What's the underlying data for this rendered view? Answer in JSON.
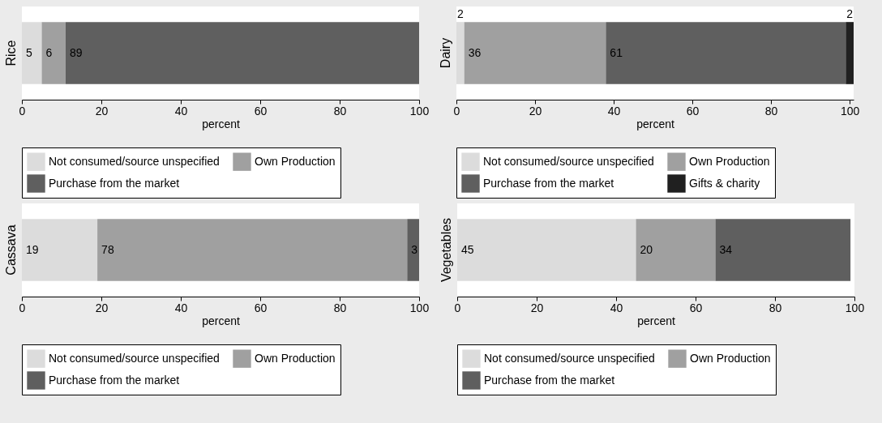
{
  "chart_data": [
    {
      "type": "bar",
      "orientation": "horizontal",
      "stacked": true,
      "categories": [
        "Rice"
      ],
      "xlabel": "percent",
      "xlim": [
        0,
        100
      ],
      "xticks": [
        0,
        20,
        40,
        60,
        80,
        100
      ],
      "data_labels": true,
      "legend": "bottom",
      "series": [
        {
          "name": "Not consumed/source unspecified",
          "color": "#dcdcdc",
          "values": [
            5
          ]
        },
        {
          "name": "Own Production",
          "color": "#a0a0a0",
          "values": [
            6
          ]
        },
        {
          "name": "Purchase from the market",
          "color": "#5f5f5f",
          "values": [
            89
          ]
        }
      ]
    },
    {
      "type": "bar",
      "orientation": "horizontal",
      "stacked": true,
      "categories": [
        "Dairy"
      ],
      "xlabel": "percent",
      "xlim": [
        0,
        101
      ],
      "xticks": [
        0,
        20,
        40,
        60,
        80,
        100
      ],
      "data_labels": true,
      "legend": "bottom",
      "series": [
        {
          "name": "Not consumed/source unspecified",
          "color": "#dcdcdc",
          "values": [
            2
          ]
        },
        {
          "name": "Own Production",
          "color": "#a0a0a0",
          "values": [
            36
          ]
        },
        {
          "name": "Purchase from the market",
          "color": "#5f5f5f",
          "values": [
            61
          ]
        },
        {
          "name": "Gifts & charity",
          "color": "#202020",
          "values": [
            2
          ]
        }
      ]
    },
    {
      "type": "bar",
      "orientation": "horizontal",
      "stacked": true,
      "categories": [
        "Cassava"
      ],
      "xlabel": "percent",
      "xlim": [
        0,
        100
      ],
      "xticks": [
        0,
        20,
        40,
        60,
        80,
        100
      ],
      "data_labels": true,
      "legend": "bottom",
      "series": [
        {
          "name": "Not consumed/source unspecified",
          "color": "#dcdcdc",
          "values": [
            19
          ]
        },
        {
          "name": "Own Production",
          "color": "#a0a0a0",
          "values": [
            78
          ]
        },
        {
          "name": "Purchase from the market",
          "color": "#5f5f5f",
          "values": [
            3
          ]
        }
      ]
    },
    {
      "type": "bar",
      "orientation": "horizontal",
      "stacked": true,
      "categories": [
        "Vegetables"
      ],
      "xlabel": "percent",
      "xlim": [
        0,
        100
      ],
      "xticks": [
        0,
        20,
        40,
        60,
        80,
        100
      ],
      "data_labels": true,
      "legend": "bottom",
      "series": [
        {
          "name": "Not consumed/source unspecified",
          "color": "#dcdcdc",
          "values": [
            45
          ]
        },
        {
          "name": "Own Production",
          "color": "#a0a0a0",
          "values": [
            20
          ]
        },
        {
          "name": "Purchase from the market",
          "color": "#5f5f5f",
          "values": [
            34
          ]
        }
      ]
    }
  ]
}
